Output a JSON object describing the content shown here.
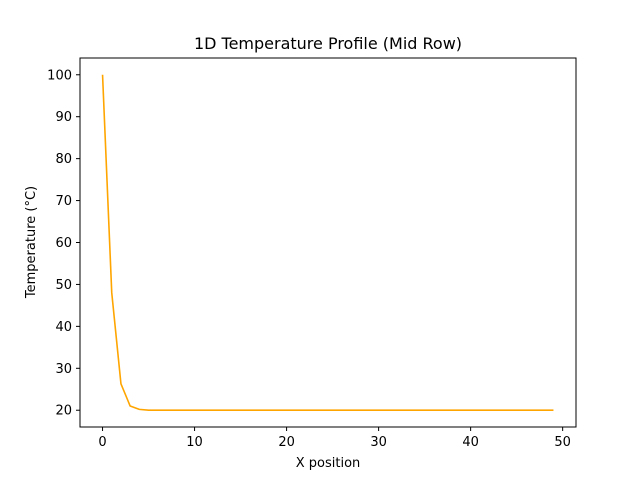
{
  "chart_data": {
    "type": "line",
    "title": "1D Temperature Profile (Mid Row)",
    "xlabel": "X position",
    "ylabel": "Temperature (°C)",
    "xlim": [
      -2.45,
      51.45
    ],
    "ylim": [
      16.0,
      104.0
    ],
    "xticks": [
      0,
      10,
      20,
      30,
      40,
      50
    ],
    "yticks": [
      20,
      30,
      40,
      50,
      60,
      70,
      80,
      90,
      100
    ],
    "grid": false,
    "legend": "none",
    "series": [
      {
        "color": "#ffa500",
        "x": [
          0,
          1,
          2,
          3,
          4,
          5,
          6,
          7,
          8,
          9,
          10,
          11,
          12,
          13,
          14,
          15,
          16,
          17,
          18,
          19,
          20,
          21,
          22,
          23,
          24,
          25,
          26,
          27,
          28,
          29,
          30,
          31,
          32,
          33,
          34,
          35,
          36,
          37,
          38,
          39,
          40,
          41,
          42,
          43,
          44,
          45,
          46,
          47,
          48,
          49
        ],
        "values": [
          100,
          48,
          26.3,
          21,
          20.2,
          20,
          20,
          20,
          20,
          20,
          20,
          20,
          20,
          20,
          20,
          20,
          20,
          20,
          20,
          20,
          20,
          20,
          20,
          20,
          20,
          20,
          20,
          20,
          20,
          20,
          20,
          20,
          20,
          20,
          20,
          20,
          20,
          20,
          20,
          20,
          20,
          20,
          20,
          20,
          20,
          20,
          20,
          20,
          20,
          20
        ]
      }
    ]
  }
}
